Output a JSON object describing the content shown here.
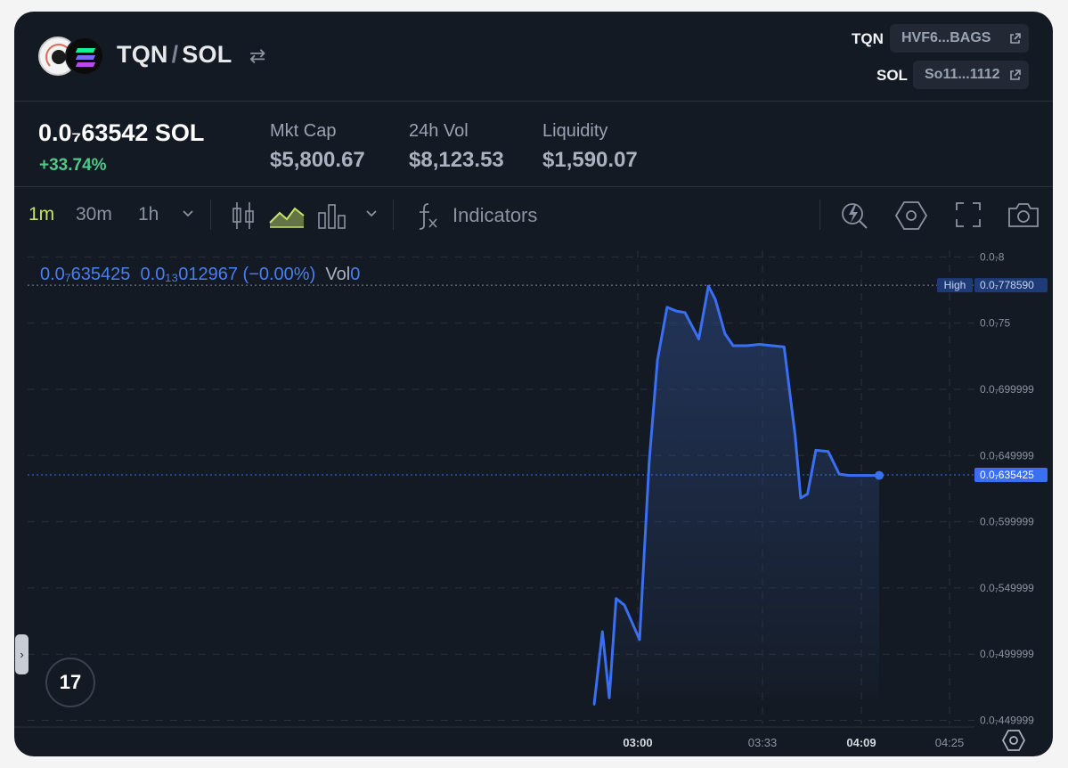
{
  "header": {
    "base": "TQN",
    "quote": "SOL",
    "separator": "/",
    "swap_glyph": "⇄",
    "addresses": [
      {
        "label": "TQN",
        "value": "HVF6...BAGS"
      },
      {
        "label": "SOL",
        "value": "So11...1112"
      }
    ]
  },
  "stats": {
    "price": "0.0₇63542 SOL",
    "change": "+33.74%",
    "items": [
      {
        "label": "Mkt Cap",
        "value": "$5,800.67"
      },
      {
        "label": "24h Vol",
        "value": "$8,123.53"
      },
      {
        "label": "Liquidity",
        "value": "$1,590.07"
      }
    ]
  },
  "toolbar": {
    "timeframes": [
      "1m",
      "30m",
      "1h"
    ],
    "active_timeframe": "1m",
    "indicators_label": "Indicators"
  },
  "legend": {
    "close": "0.0₇635425",
    "change": "0.0₁₃012967 (−0.00%)",
    "vol_label": "Vol",
    "vol_value": "0"
  },
  "colors": {
    "line": "#3b6ff2",
    "accent_green": "#4fc88a",
    "active_tf": "#c7e26d",
    "background": "#141a23"
  },
  "chart_data": {
    "type": "area",
    "title": "TQN / SOL",
    "price_unit": "1e-7 SOL",
    "x": [
      0.0,
      0.3,
      0.55,
      0.8,
      1.1,
      1.65,
      2.0,
      2.3,
      2.65,
      3.0,
      3.3,
      3.8,
      4.15,
      4.4,
      4.75,
      5.05,
      5.55,
      6.0,
      6.9,
      7.3,
      7.5,
      7.75,
      8.05,
      8.5,
      8.9,
      9.25,
      9.6,
      9.9,
      10.1,
      10.35
    ],
    "y": [
      0.462,
      0.517,
      0.467,
      0.542,
      0.537,
      0.511,
      0.645,
      0.722,
      0.762,
      0.759,
      0.758,
      0.738,
      0.778,
      0.768,
      0.742,
      0.733,
      0.733,
      0.734,
      0.732,
      0.665,
      0.618,
      0.621,
      0.654,
      0.653,
      0.636,
      0.635,
      0.635,
      0.635,
      0.635,
      0.635
    ],
    "y_ticks": [
      "0.0₇8",
      "0.0₇75",
      "0.0₇699999",
      "0.0₇649999",
      "0.0₇599999",
      "0.0₇549999",
      "0.0₇499999",
      "0.0₇449999"
    ],
    "y_tick_values": [
      0.8,
      0.75,
      0.7,
      0.65,
      0.6,
      0.55,
      0.5,
      0.45
    ],
    "x_ticks": [
      "03:00",
      "03:33",
      "04:09",
      "04:25"
    ],
    "x_tick_bold": [
      true,
      false,
      true,
      false
    ],
    "ylim": [
      0.447,
      0.809
    ],
    "x_start": "02:49",
    "xlim": [
      0.0,
      35.0
    ],
    "x_tick_positions": [
      11.0,
      25.0,
      36.0,
      46.0
    ],
    "high_label": "High",
    "high_value": "0.0₇778590",
    "high": 0.7786,
    "last_value": "0.0₇635425",
    "last": 0.635425
  }
}
